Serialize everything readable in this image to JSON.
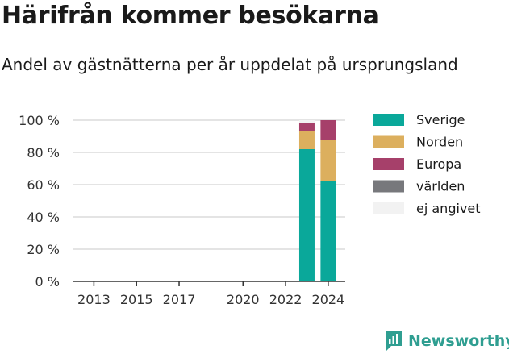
{
  "header": {
    "title": "Härifrån kommer besökarna",
    "subtitle": "Andel av gästnätterna per år uppdelat på ursprungsland"
  },
  "brand": {
    "name": "Newsworthy",
    "color": "#2f9e91"
  },
  "chart_data": {
    "type": "bar",
    "stacked": true,
    "title": "Härifrån kommer besökarna",
    "subtitle": "Andel av gästnätterna per år uppdelat på ursprungsland",
    "x": [
      2023,
      2024
    ],
    "x_ticks": [
      2013,
      2015,
      2017,
      2020,
      2022,
      2024
    ],
    "xlim": [
      2012,
      2024.8
    ],
    "ylim": [
      0,
      100
    ],
    "y_ticks": [
      0,
      20,
      40,
      60,
      80,
      100
    ],
    "y_tick_labels": [
      "0 %",
      "20 %",
      "40 %",
      "60 %",
      "80 %",
      "100 %"
    ],
    "grid": true,
    "legend_position": "right",
    "series": [
      {
        "name": "Sverige",
        "color": "#0aa89a",
        "values": [
          82,
          62
        ]
      },
      {
        "name": "Norden",
        "color": "#dcaf5e",
        "values": [
          11,
          26
        ]
      },
      {
        "name": "Europa",
        "color": "#a6406a",
        "values": [
          5,
          12
        ]
      },
      {
        "name": "världen",
        "color": "#77787c",
        "values": [
          0,
          0
        ]
      },
      {
        "name": "ej angivet",
        "color": "#f2f2f2",
        "values": [
          2,
          0
        ]
      }
    ]
  }
}
